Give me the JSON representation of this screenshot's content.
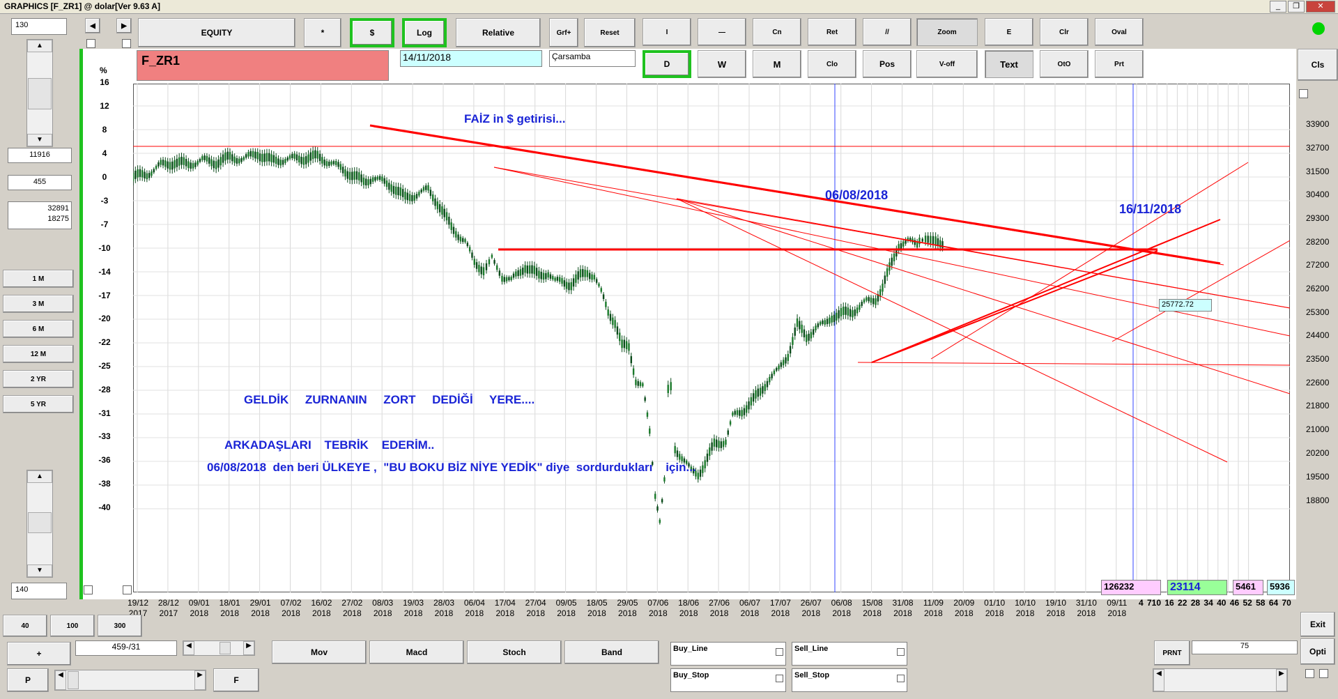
{
  "window": {
    "title": "GRAPHICS  [F_ZR1] @ dolar[Ver 9.63 A]",
    "minimize": "_",
    "restore": "❐",
    "close": "✕"
  },
  "left_panel": {
    "top_field": "130",
    "readout_1": "11916",
    "readout_2": "455",
    "readout_3a": "32891",
    "readout_3b": "18275",
    "periods": [
      "1 M",
      "3 M",
      "6 M",
      "12 M",
      "2 YR",
      "5 YR"
    ],
    "bottom_field": "140"
  },
  "toolbar": {
    "equity": "EQUITY",
    "star": "*",
    "dollar": "$",
    "log": "Log",
    "relative": "Relative",
    "grf_plus": "Grf+",
    "reset": "Reset",
    "row1_tools": [
      "I",
      "—",
      "Cn",
      "Ret",
      "//",
      "Zoom",
      "E",
      "Clr",
      "Oval"
    ],
    "row2_tools": [
      "D",
      "W",
      "M",
      "Clo",
      "Pos",
      "V-off",
      "Text",
      "OtO",
      "Prt"
    ],
    "cls": "Cls"
  },
  "symbol": "F_ZR1",
  "date": "14/11/2018",
  "weekday": "Çarsamba",
  "y_axis_left": [
    "16",
    "12",
    "8",
    "4",
    "0",
    "-3",
    "-7",
    "-10",
    "-14",
    "-17",
    "-20",
    "-22",
    "-25",
    "-28",
    "-31",
    "-33",
    "-36",
    "-38",
    "-40"
  ],
  "y_axis_left_unit": "%",
  "y_axis_right": [
    "33900",
    "32700",
    "31500",
    "30400",
    "29300",
    "28200",
    "27200",
    "26200",
    "25300",
    "24400",
    "23500",
    "22600",
    "21800",
    "21000",
    "20200",
    "19500",
    "18800"
  ],
  "x_axis": [
    {
      "d": "19/12",
      "y": "2017"
    },
    {
      "d": "28/12",
      "y": "2017"
    },
    {
      "d": "09/01",
      "y": "2018"
    },
    {
      "d": "18/01",
      "y": "2018"
    },
    {
      "d": "29/01",
      "y": "2018"
    },
    {
      "d": "07/02",
      "y": "2018"
    },
    {
      "d": "16/02",
      "y": "2018"
    },
    {
      "d": "27/02",
      "y": "2018"
    },
    {
      "d": "08/03",
      "y": "2018"
    },
    {
      "d": "19/03",
      "y": "2018"
    },
    {
      "d": "28/03",
      "y": "2018"
    },
    {
      "d": "06/04",
      "y": "2018"
    },
    {
      "d": "17/04",
      "y": "2018"
    },
    {
      "d": "27/04",
      "y": "2018"
    },
    {
      "d": "09/05",
      "y": "2018"
    },
    {
      "d": "18/05",
      "y": "2018"
    },
    {
      "d": "29/05",
      "y": "2018"
    },
    {
      "d": "07/06",
      "y": "2018"
    },
    {
      "d": "18/06",
      "y": "2018"
    },
    {
      "d": "27/06",
      "y": "2018"
    },
    {
      "d": "06/07",
      "y": "2018"
    },
    {
      "d": "17/07",
      "y": "2018"
    },
    {
      "d": "26/07",
      "y": "2018"
    },
    {
      "d": "06/08",
      "y": "2018"
    },
    {
      "d": "15/08",
      "y": "2018"
    },
    {
      "d": "31/08",
      "y": "2018"
    },
    {
      "d": "11/09",
      "y": "2018"
    },
    {
      "d": "20/09",
      "y": "2018"
    },
    {
      "d": "01/10",
      "y": "2018"
    },
    {
      "d": "10/10",
      "y": "2018"
    },
    {
      "d": "19/10",
      "y": "2018"
    },
    {
      "d": "31/10",
      "y": "2018"
    },
    {
      "d": "09/11",
      "y": "2018"
    }
  ],
  "x_axis_future": "4 710 16 22 28 34 40 46 52 58 64 70",
  "annotations": {
    "faiz": "FAİZ in $  getirisi...",
    "date1": "06/08/2018",
    "date2": "16/11/2018",
    "geldik": "GELDİK     ZURNANIN     ZORT     DEDİĞİ     YERE....",
    "arkadaslari": "ARKADAŞLARI    TEBRİK    EDERİM..",
    "bu_boku": "06/08/2018  den beri ÜLKEYE ,  \"BU BOKU BİZ NİYE YEDİK\" diye  sordurdukları    için..."
  },
  "price_label": "25772.72",
  "bottom_readouts": {
    "r1": "126232",
    "r2": "23114",
    "r3": "5461",
    "r4": "5936"
  },
  "bottom_controls": {
    "btn_40": "40",
    "btn_100": "100",
    "btn_300": "300",
    "plus": "+",
    "position": "459-/31",
    "p": "P",
    "f": "F",
    "mov": "Mov",
    "macd": "Macd",
    "stoch": "Stoch",
    "band": "Band",
    "buy_line": "Buy_Line",
    "sell_line": "Sell_Line",
    "buy_stop": "Buy_Stop",
    "sell_stop": "Sell_Stop",
    "prnt": "PRNT",
    "prnt_value": "75",
    "exit": "Exit",
    "opti": "Opti"
  },
  "colors": {
    "accent_green": "#1fc21f",
    "symbol_bg": "#f08080",
    "line_red": "#ff0000",
    "text_blue": "#1a24d6",
    "candle": "#0a4a1a"
  }
}
